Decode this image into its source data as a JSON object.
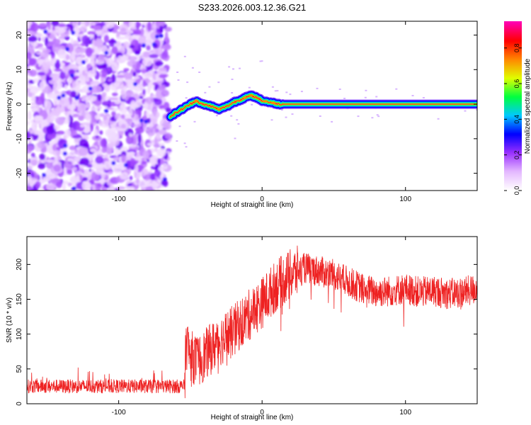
{
  "title": "S233.2026.003.12.36.G21",
  "chart_data": [
    {
      "type": "heatmap",
      "xlabel": "Height of straight line (km)",
      "ylabel": "Frequency (Hz)",
      "xlim": [
        -164,
        150
      ],
      "ylim": [
        -25,
        24
      ],
      "xticks": [
        -100,
        0,
        100
      ],
      "yticks": [
        -20,
        -10,
        0,
        10,
        20
      ],
      "ridge_x": [
        -64,
        -58,
        -52,
        -46,
        -42,
        -36,
        -30,
        -24,
        -20,
        -14,
        -8,
        -4,
        0,
        6,
        12,
        150
      ],
      "ridge_y": [
        -3.5,
        -2,
        -0.5,
        1,
        0,
        -0.5,
        -1.5,
        -0.5,
        0.5,
        1.5,
        2.5,
        2,
        1,
        0.5,
        0,
        0
      ],
      "colorbar": {
        "label": "Normalized spectral amplitude",
        "range": [
          0,
          0.95
        ],
        "ticks": [
          "0.0",
          "0.2",
          "0.4",
          "0.6",
          "0.8"
        ],
        "colors": [
          "#ffffff",
          "#e4b8ff",
          "#9a30ff",
          "#0000ff",
          "#00c8ff",
          "#00ff40",
          "#e0ff00",
          "#ff8800",
          "#ff0000",
          "#ff00b0"
        ]
      }
    },
    {
      "type": "line",
      "xlabel": "Height of straight line (km)",
      "ylabel": "SNR (10 * v/v)",
      "xlim": [
        -164,
        150
      ],
      "ylim": [
        0,
        240
      ],
      "xticks": [
        -100,
        0,
        100
      ],
      "yticks": [
        0,
        50,
        100,
        150,
        200
      ],
      "color": "#ee2222",
      "trend_x": [
        -164,
        -54,
        -53,
        -50,
        -45,
        -40,
        -30,
        -20,
        -10,
        0,
        10,
        20,
        30,
        40,
        50,
        60,
        70,
        80,
        90,
        100,
        110,
        120,
        130,
        140,
        150
      ],
      "trend_y": [
        25,
        25,
        90,
        70,
        60,
        70,
        90,
        105,
        125,
        145,
        170,
        185,
        195,
        190,
        185,
        175,
        165,
        160,
        162,
        165,
        160,
        162,
        158,
        160,
        165
      ]
    }
  ]
}
